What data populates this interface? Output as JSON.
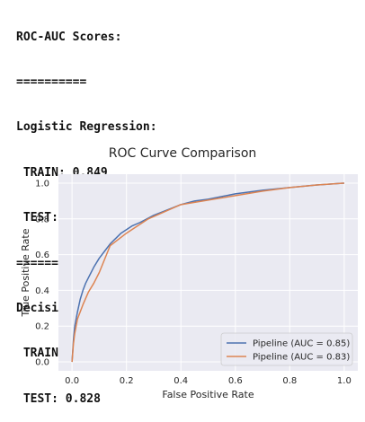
{
  "console": {
    "lines": [
      "ROC-AUC Scores:",
      "==========",
      "Logistic Regression:",
      " TRAIN: 0.849",
      " TEST: 0.850",
      "==========",
      "Decision Tree:",
      " TRAIN: 0.830",
      " TEST: 0.828"
    ]
  },
  "chart_data": {
    "type": "line",
    "title": "ROC Curve Comparison",
    "xlabel": "False Positive Rate",
    "ylabel": "True Positive Rate",
    "xlim": [
      -0.05,
      1.05
    ],
    "ylim": [
      -0.05,
      1.05
    ],
    "xticks": [
      "0.0",
      "0.2",
      "0.4",
      "0.6",
      "0.8",
      "1.0"
    ],
    "yticks": [
      "0.0",
      "0.2",
      "0.4",
      "0.6",
      "0.8",
      "1.0"
    ],
    "xtick_values": [
      0,
      0.2,
      0.4,
      0.6,
      0.8,
      1.0
    ],
    "ytick_values": [
      0,
      0.2,
      0.4,
      0.6,
      0.8,
      1.0
    ],
    "grid": true,
    "legend_position": "lower-right",
    "series": [
      {
        "name": "Pipeline (AUC = 0.85)",
        "color": "#4c72b0",
        "x": [
          0,
          0.005,
          0.01,
          0.02,
          0.03,
          0.04,
          0.05,
          0.06,
          0.08,
          0.1,
          0.12,
          0.14,
          0.16,
          0.18,
          0.2,
          0.22,
          0.25,
          0.3,
          0.35,
          0.4,
          0.45,
          0.5,
          0.55,
          0.6,
          0.7,
          0.8,
          0.9,
          1.0
        ],
        "y": [
          0,
          0.12,
          0.2,
          0.28,
          0.35,
          0.4,
          0.44,
          0.47,
          0.53,
          0.58,
          0.62,
          0.66,
          0.69,
          0.72,
          0.74,
          0.76,
          0.78,
          0.82,
          0.85,
          0.88,
          0.9,
          0.91,
          0.925,
          0.94,
          0.96,
          0.975,
          0.99,
          1.0
        ]
      },
      {
        "name": "Pipeline (AUC = 0.83)",
        "color": "#dd8452",
        "x": [
          0,
          0.005,
          0.01,
          0.02,
          0.04,
          0.06,
          0.08,
          0.1,
          0.14,
          0.2,
          0.28,
          0.4,
          0.5,
          0.6,
          0.7,
          0.8,
          0.9,
          1.0
        ],
        "y": [
          0,
          0.1,
          0.16,
          0.24,
          0.32,
          0.39,
          0.44,
          0.5,
          0.65,
          0.72,
          0.8,
          0.88,
          0.905,
          0.93,
          0.955,
          0.975,
          0.99,
          1.0
        ]
      }
    ]
  }
}
